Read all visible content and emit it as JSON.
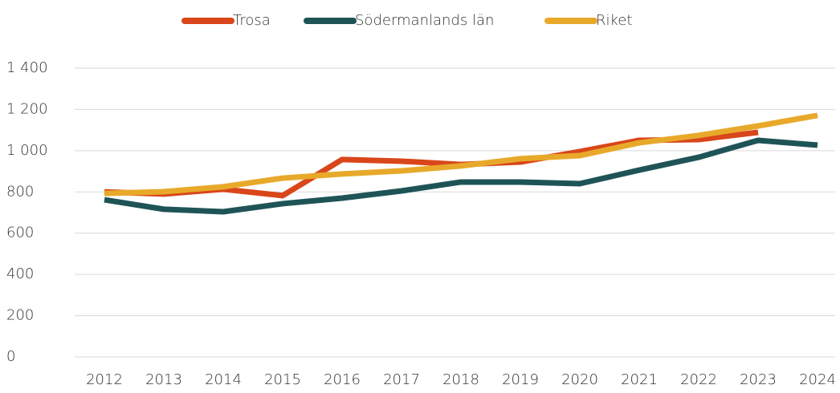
{
  "chart_data": {
    "type": "line",
    "categories": [
      "2012",
      "2013",
      "2014",
      "2015",
      "2016",
      "2017",
      "2018",
      "2019",
      "2020",
      "2021",
      "2022",
      "2023",
      "2024"
    ],
    "series": [
      {
        "name": "Trosa",
        "color": "#d9461a",
        "values": [
          800,
          790,
          813,
          782,
          957,
          949,
          933,
          945,
          996,
          1050,
          1054,
          1089,
          null
        ]
      },
      {
        "name": "Södermanlands län",
        "color": "#1f5457",
        "values": [
          762,
          716,
          704,
          743,
          770,
          805,
          848,
          848,
          840,
          906,
          968,
          1050,
          1027
        ]
      },
      {
        "name": "Riket",
        "color": "#e8a92a",
        "values": [
          793,
          801,
          825,
          867,
          887,
          902,
          926,
          961,
          976,
          1038,
          1074,
          1120,
          1171
        ]
      }
    ],
    "ylim": [
      0,
      1400
    ],
    "yticks": [
      0,
      200,
      400,
      600,
      800,
      {
        "value": 1000,
        "label": "1 000"
      },
      {
        "value": 1200,
        "label": "1 200"
      },
      {
        "value": 1400,
        "label": "1 400"
      }
    ],
    "grid": true,
    "legend": "top"
  }
}
